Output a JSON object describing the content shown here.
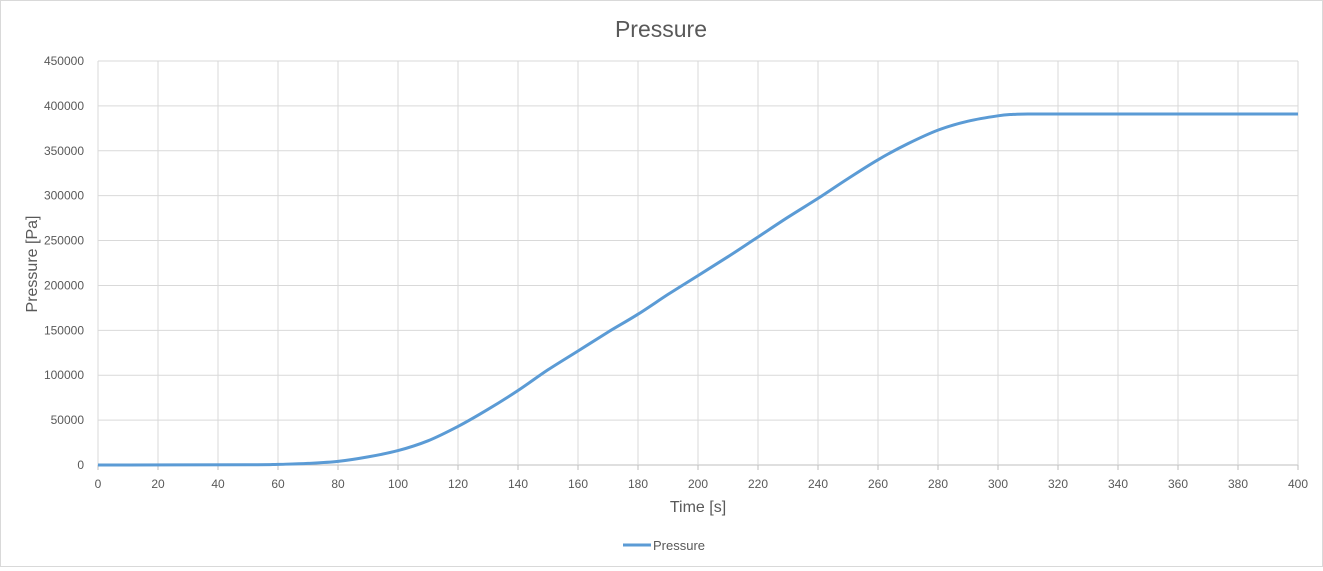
{
  "chart_data": {
    "type": "line",
    "title": "Pressure",
    "xlabel": "Time [s]",
    "ylabel": "Pressure [Pa]",
    "xlim": [
      0,
      400
    ],
    "ylim": [
      0,
      450000
    ],
    "x_ticks": [
      0,
      20,
      40,
      60,
      80,
      100,
      120,
      140,
      160,
      180,
      200,
      220,
      240,
      260,
      280,
      300,
      320,
      340,
      360,
      380,
      400
    ],
    "y_ticks": [
      0,
      50000,
      100000,
      150000,
      200000,
      250000,
      300000,
      350000,
      400000,
      450000
    ],
    "grid": true,
    "legend": "bottom",
    "series": [
      {
        "name": "Pressure",
        "color": "#5b9bd5",
        "x": [
          0,
          50,
          60,
          70,
          80,
          90,
          100,
          110,
          120,
          130,
          140,
          150,
          160,
          170,
          180,
          190,
          200,
          210,
          220,
          230,
          240,
          250,
          260,
          270,
          280,
          290,
          300,
          305,
          310,
          320,
          340,
          360,
          380,
          400
        ],
        "y": [
          0,
          200,
          700,
          1800,
          4000,
          9000,
          16000,
          27000,
          43000,
          62000,
          83000,
          106000,
          127000,
          148000,
          168000,
          190000,
          211000,
          232000,
          254000,
          276000,
          297000,
          319000,
          340000,
          358000,
          373000,
          383000,
          389000,
          390500,
          391000,
          391000,
          391000,
          391000,
          391000,
          391000
        ]
      }
    ]
  }
}
